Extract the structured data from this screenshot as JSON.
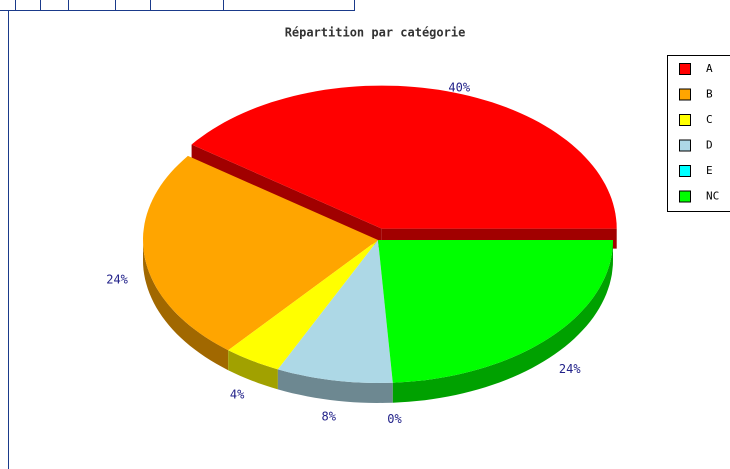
{
  "chart_data": {
    "type": "pie",
    "title": "Répartition par catégorie",
    "categories": [
      "A",
      "B",
      "C",
      "D",
      "E",
      "NC"
    ],
    "values": [
      40,
      24,
      4,
      8,
      0,
      24
    ],
    "value_labels": [
      "40%",
      "24%",
      "4%",
      "8%",
      "0%",
      "24%"
    ],
    "colors": [
      "#ff0000",
      "#ffa500",
      "#ffff00",
      "#add8e6",
      "#00ffff",
      "#00ff00"
    ],
    "explode": [
      true,
      false,
      false,
      false,
      false,
      false
    ],
    "legend": "right"
  }
}
